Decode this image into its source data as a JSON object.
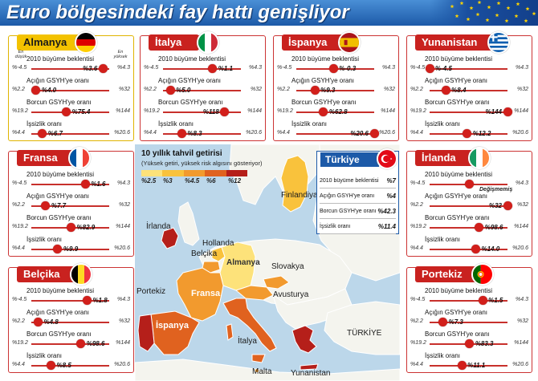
{
  "title": "Euro bölgesindeki fay hattı genişliyor",
  "bond": {
    "title": "10 yıllık tahvil getirisi",
    "subtitle": "(Yüksek getiri, yüksek risk algısını gösteriyor)",
    "ticks": [
      "%2.5",
      "%3",
      "%4.5",
      "%6",
      "%12"
    ],
    "colors": [
      "#fde27a",
      "#f9c23c",
      "#f29a2e",
      "#e0621f",
      "#b51f1a"
    ]
  },
  "labels": {
    "low": "En düşük",
    "high": "En yüksek"
  },
  "map": {
    "countries": {
      "finlandiya": "Finlandiya",
      "irlanda": "İrlanda",
      "hollanda": "Hollanda",
      "belcika": "Belçika",
      "almanya": "Almanya",
      "slovakya": "Slovakya",
      "portekiz": "Portekiz",
      "fransa": "Fransa",
      "avusturya": "Avusturya",
      "ispanya": "İspanya",
      "italya": "İtalya",
      "turkiye": "TÜRKİYE",
      "malta": "Malta",
      "yunanistan": "Yunanistan"
    },
    "colors": {
      "sea": "#bcd7ea",
      "land": "#f4f4ee",
      "border": "#ffffff"
    }
  },
  "indicators": {
    "growth": {
      "label": "2010 büyüme beklentisi",
      "min": "%-4.5",
      "max": "%4.3",
      "lo": -4.5,
      "hi": 4.3
    },
    "deficit": {
      "label": "Açığın GSYH'ye oranı",
      "min": "%2.2",
      "max": "%32",
      "lo": 2.2,
      "hi": 32
    },
    "debt": {
      "label": "Borcun GSYH'ye oranı",
      "min": "%19.2",
      "max": "%144",
      "lo": 19.2,
      "hi": 144
    },
    "unemployment": {
      "label": "İşsizlik oranı",
      "min": "%4.4",
      "max": "%20.6",
      "lo": 4.4,
      "hi": 20.6
    }
  },
  "panels": [
    {
      "id": "almanya",
      "name": "Almanya",
      "theme": "gold",
      "flag": "de",
      "values": {
        "growth": 3.6,
        "deficit": 4.0,
        "debt": 75.4,
        "unemployment": 6.7
      },
      "labels": {
        "growth": "%3.6",
        "deficit": "%4.0",
        "debt": "%75.4",
        "unemployment": "%6.7"
      }
    },
    {
      "id": "italya",
      "name": "İtalya",
      "theme": "red",
      "flag": "it",
      "values": {
        "growth": 1.1,
        "deficit": 5.0,
        "debt": 118,
        "unemployment": 8.3
      },
      "labels": {
        "growth": "%1.1",
        "deficit": "%5.0",
        "debt": "%118",
        "unemployment": "%8.3"
      }
    },
    {
      "id": "ispanya",
      "name": "İspanya",
      "theme": "red",
      "flag": "es",
      "values": {
        "growth": -0.3,
        "deficit": 9.3,
        "debt": 62.8,
        "unemployment": 20.6
      },
      "labels": {
        "growth": "%-0.3",
        "deficit": "%9.3",
        "debt": "%62.8",
        "unemployment": "%20.6"
      }
    },
    {
      "id": "yunanistan",
      "name": "Yunanistan",
      "theme": "red",
      "flag": "gr",
      "values": {
        "growth": -4.5,
        "deficit": 8.4,
        "debt": 144,
        "unemployment": 12.2
      },
      "labels": {
        "growth": "%-4.5",
        "deficit": "%8.4",
        "debt": "%144",
        "unemployment": "%12.2"
      }
    },
    {
      "id": "fransa",
      "name": "Fransa",
      "theme": "red",
      "flag": "fr",
      "values": {
        "growth": 1.6,
        "deficit": 7.7,
        "debt": 82.9,
        "unemployment": 9.9
      },
      "labels": {
        "growth": "%1.6",
        "deficit": "%7.7",
        "debt": "%82.9",
        "unemployment": "%9.9"
      }
    },
    {
      "id": "irlanda",
      "name": "İrlanda",
      "theme": "red",
      "flag": "ie",
      "note": "Değişmemiş",
      "values": {
        "growth": 0.0,
        "deficit": 32,
        "debt": 98.6,
        "unemployment": 14.0
      },
      "labels": {
        "growth": "",
        "deficit": "%32",
        "debt": "%98.6",
        "unemployment": "%14.0"
      }
    },
    {
      "id": "belcika",
      "name": "Belçika",
      "theme": "red",
      "flag": "be",
      "values": {
        "growth": 1.8,
        "deficit": 4.8,
        "debt": 98.6,
        "unemployment": 8.5
      },
      "labels": {
        "growth": "%1.8",
        "deficit": "%4.8",
        "debt": "%98.6",
        "unemployment": "%8.5"
      }
    },
    {
      "id": "portekiz",
      "name": "Portekiz",
      "theme": "red",
      "flag": "pt",
      "values": {
        "growth": 1.5,
        "deficit": 7.3,
        "debt": 83.3,
        "unemployment": 11.1
      },
      "labels": {
        "growth": "%1.5",
        "deficit": "%7.3",
        "debt": "%83.3",
        "unemployment": "%11.1"
      }
    }
  ],
  "turkiye": {
    "name": "Türkiye",
    "rows": [
      {
        "label": "2010 büyüme beklentisi",
        "value": "%7"
      },
      {
        "label": "Açığın GSYH'ye oranı",
        "value": "%4"
      },
      {
        "label": "Borcun GSYH'ye oranı",
        "value": "%42.3"
      },
      {
        "label": "İşsizlik oranı",
        "value": "%11.4"
      }
    ]
  }
}
